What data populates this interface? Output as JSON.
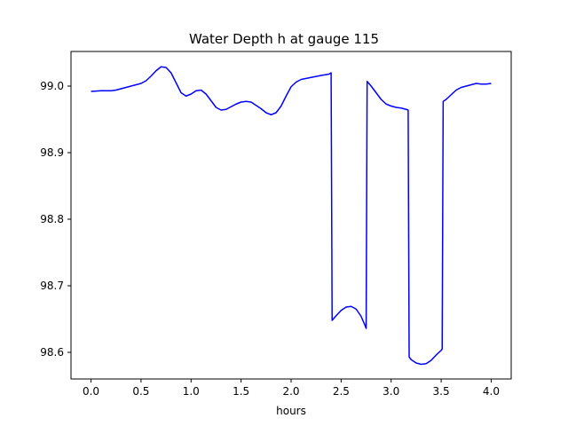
{
  "chart_data": {
    "type": "line",
    "title": "Water Depth h at gauge 115",
    "xlabel": "hours",
    "ylabel": "",
    "xlim": [
      -0.2,
      4.2
    ],
    "ylim": [
      98.56,
      99.052
    ],
    "xticks": [
      0.0,
      0.5,
      1.0,
      1.5,
      2.0,
      2.5,
      3.0,
      3.5,
      4.0
    ],
    "xtick_labels": [
      "0.0",
      "0.5",
      "1.0",
      "1.5",
      "2.0",
      "2.5",
      "3.0",
      "3.5",
      "4.0"
    ],
    "yticks": [
      98.6,
      98.7,
      98.8,
      98.9,
      99.0
    ],
    "ytick_labels": [
      "98.6",
      "98.7",
      "98.8",
      "98.9",
      "99.0"
    ],
    "grid": false,
    "legend": "none",
    "color": "#0000ff",
    "series": [
      {
        "x": [
          0.0,
          0.1,
          0.2,
          0.25,
          0.3,
          0.4,
          0.5,
          0.55,
          0.6,
          0.65,
          0.7,
          0.75,
          0.8,
          0.85,
          0.9,
          0.95,
          1.0,
          1.05,
          1.1,
          1.15,
          1.2,
          1.25,
          1.3,
          1.35,
          1.4,
          1.45,
          1.5,
          1.55,
          1.6,
          1.65,
          1.7,
          1.75,
          1.8,
          1.85,
          1.9,
          1.95,
          2.0,
          2.05,
          2.1,
          2.2,
          2.3,
          2.38,
          2.4,
          2.41,
          2.45,
          2.5,
          2.55,
          2.6,
          2.65,
          2.7,
          2.74,
          2.75,
          2.76,
          2.8,
          2.85,
          2.9,
          2.95,
          3.0,
          3.05,
          3.1,
          3.15,
          3.17,
          3.18,
          3.2,
          3.25,
          3.3,
          3.35,
          3.4,
          3.45,
          3.5,
          3.51,
          3.52,
          3.55,
          3.6,
          3.65,
          3.7,
          3.75,
          3.8,
          3.85,
          3.9,
          3.95,
          4.0
        ],
        "y": [
          98.992,
          98.993,
          98.993,
          98.994,
          98.996,
          99.0,
          99.004,
          99.008,
          99.015,
          99.023,
          99.029,
          99.028,
          99.02,
          99.005,
          98.99,
          98.985,
          98.988,
          98.993,
          98.994,
          98.988,
          98.978,
          98.968,
          98.964,
          98.965,
          98.969,
          98.973,
          98.976,
          98.977,
          98.976,
          98.971,
          98.966,
          98.96,
          98.957,
          98.96,
          98.97,
          98.985,
          98.999,
          99.006,
          99.01,
          99.013,
          99.016,
          99.018,
          99.02,
          98.648,
          98.655,
          98.663,
          98.668,
          98.669,
          98.665,
          98.654,
          98.64,
          98.636,
          99.007,
          99.0,
          98.99,
          98.98,
          98.973,
          98.97,
          98.968,
          98.967,
          98.965,
          98.964,
          98.593,
          98.589,
          98.584,
          98.582,
          98.583,
          98.588,
          98.596,
          98.603,
          98.605,
          98.977,
          98.98,
          98.987,
          98.994,
          98.998,
          99.0,
          99.002,
          99.004,
          99.003,
          99.003,
          99.004
        ]
      }
    ]
  }
}
